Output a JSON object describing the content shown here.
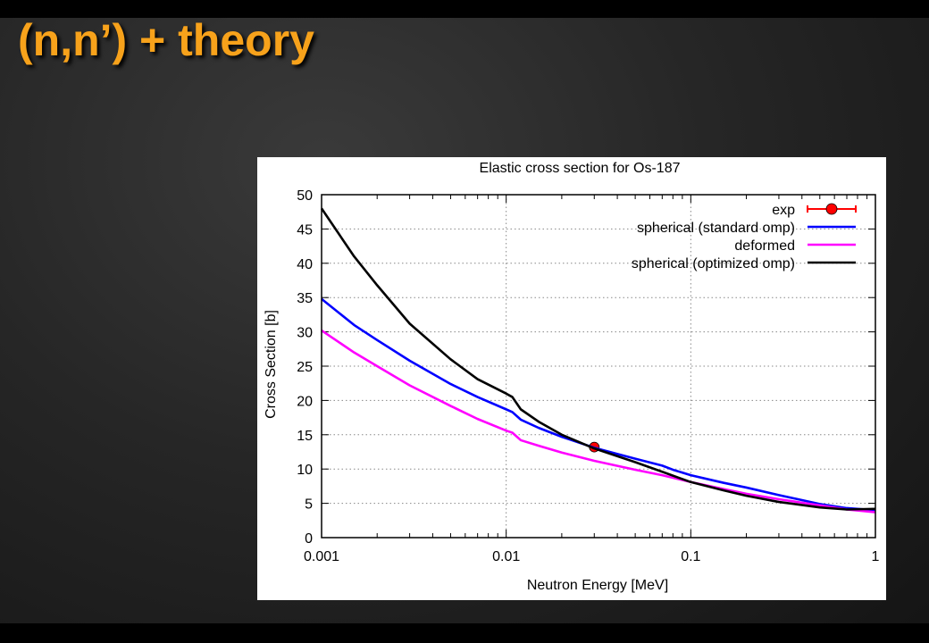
{
  "slide": {
    "title": "(n,n’) + theory"
  },
  "chart_data": {
    "type": "line",
    "title": "Elastic cross section for Os-187",
    "xlabel": "Neutron Energy  [MeV]",
    "ylabel": "Cross Section [b]",
    "xscale": "log",
    "xlim": [
      0.001,
      1
    ],
    "ylim": [
      0,
      50
    ],
    "xticks": [
      {
        "value": 0.001,
        "label": "0.001"
      },
      {
        "value": 0.01,
        "label": "0.01"
      },
      {
        "value": 0.1,
        "label": "0.1"
      },
      {
        "value": 1,
        "label": "1"
      }
    ],
    "yticks": [
      {
        "value": 0,
        "label": "0"
      },
      {
        "value": 5,
        "label": "5"
      },
      {
        "value": 10,
        "label": "10"
      },
      {
        "value": 15,
        "label": "15"
      },
      {
        "value": 20,
        "label": "20"
      },
      {
        "value": 25,
        "label": "25"
      },
      {
        "value": 30,
        "label": "30"
      },
      {
        "value": 35,
        "label": "35"
      },
      {
        "value": 40,
        "label": "40"
      },
      {
        "value": 45,
        "label": "45"
      },
      {
        "value": 50,
        "label": "50"
      }
    ],
    "grid": true,
    "legend_position": "top-right",
    "series": [
      {
        "name": "exp",
        "kind": "points",
        "color": "#ff0000",
        "points": [
          {
            "x": 0.03,
            "y": 13.2,
            "xerr": [
              0.029,
              0.031
            ]
          }
        ]
      },
      {
        "name": "spherical (standard omp)",
        "kind": "line",
        "color": "#0000ff",
        "points": [
          {
            "x": 0.001,
            "y": 34.8
          },
          {
            "x": 0.0015,
            "y": 31.0
          },
          {
            "x": 0.002,
            "y": 28.8
          },
          {
            "x": 0.003,
            "y": 25.8
          },
          {
            "x": 0.005,
            "y": 22.4
          },
          {
            "x": 0.007,
            "y": 20.5
          },
          {
            "x": 0.01,
            "y": 18.7
          },
          {
            "x": 0.0108,
            "y": 18.3
          },
          {
            "x": 0.012,
            "y": 17.2
          },
          {
            "x": 0.015,
            "y": 16.0
          },
          {
            "x": 0.02,
            "y": 14.7
          },
          {
            "x": 0.03,
            "y": 13.1
          },
          {
            "x": 0.05,
            "y": 11.5
          },
          {
            "x": 0.07,
            "y": 10.5
          },
          {
            "x": 0.08,
            "y": 9.9
          },
          {
            "x": 0.1,
            "y": 9.1
          },
          {
            "x": 0.15,
            "y": 8.0
          },
          {
            "x": 0.2,
            "y": 7.3
          },
          {
            "x": 0.3,
            "y": 6.2
          },
          {
            "x": 0.5,
            "y": 4.9
          },
          {
            "x": 0.7,
            "y": 4.3
          },
          {
            "x": 1.0,
            "y": 4.0
          }
        ]
      },
      {
        "name": "deformed",
        "kind": "line",
        "color": "#ff00ff",
        "points": [
          {
            "x": 0.001,
            "y": 30.2
          },
          {
            "x": 0.0015,
            "y": 27.0
          },
          {
            "x": 0.002,
            "y": 25.0
          },
          {
            "x": 0.003,
            "y": 22.2
          },
          {
            "x": 0.005,
            "y": 19.2
          },
          {
            "x": 0.007,
            "y": 17.3
          },
          {
            "x": 0.01,
            "y": 15.6
          },
          {
            "x": 0.0108,
            "y": 15.3
          },
          {
            "x": 0.012,
            "y": 14.2
          },
          {
            "x": 0.015,
            "y": 13.4
          },
          {
            "x": 0.02,
            "y": 12.4
          },
          {
            "x": 0.03,
            "y": 11.2
          },
          {
            "x": 0.05,
            "y": 9.9
          },
          {
            "x": 0.07,
            "y": 9.1
          },
          {
            "x": 0.1,
            "y": 8.1
          },
          {
            "x": 0.15,
            "y": 7.1
          },
          {
            "x": 0.2,
            "y": 6.4
          },
          {
            "x": 0.3,
            "y": 5.6
          },
          {
            "x": 0.5,
            "y": 4.7
          },
          {
            "x": 0.7,
            "y": 4.1
          },
          {
            "x": 1.0,
            "y": 3.7
          }
        ]
      },
      {
        "name": "spherical (optimized omp)",
        "kind": "line",
        "color": "#000000",
        "points": [
          {
            "x": 0.001,
            "y": 48.0
          },
          {
            "x": 0.0015,
            "y": 41.0
          },
          {
            "x": 0.002,
            "y": 36.8
          },
          {
            "x": 0.003,
            "y": 31.2
          },
          {
            "x": 0.005,
            "y": 26.0
          },
          {
            "x": 0.007,
            "y": 23.1
          },
          {
            "x": 0.01,
            "y": 21.0
          },
          {
            "x": 0.0108,
            "y": 20.5
          },
          {
            "x": 0.012,
            "y": 18.7
          },
          {
            "x": 0.015,
            "y": 16.9
          },
          {
            "x": 0.02,
            "y": 15.0
          },
          {
            "x": 0.03,
            "y": 13.0
          },
          {
            "x": 0.05,
            "y": 11.0
          },
          {
            "x": 0.07,
            "y": 9.6
          },
          {
            "x": 0.1,
            "y": 8.1
          },
          {
            "x": 0.15,
            "y": 6.9
          },
          {
            "x": 0.2,
            "y": 6.1
          },
          {
            "x": 0.3,
            "y": 5.2
          },
          {
            "x": 0.5,
            "y": 4.4
          },
          {
            "x": 0.7,
            "y": 4.1
          },
          {
            "x": 1.0,
            "y": 4.2
          }
        ]
      }
    ]
  }
}
